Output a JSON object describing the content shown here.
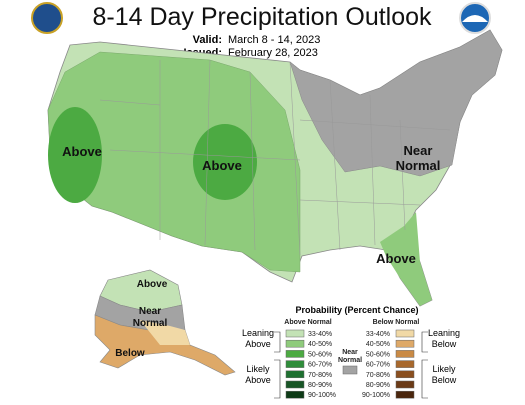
{
  "header": {
    "title": "8-14 Day Precipitation Outlook",
    "valid_label": "Valid:",
    "valid": "March 8 - 14, 2023",
    "issued_label": "Issued:",
    "issued": "February 28, 2023"
  },
  "map_labels": {
    "west_coast": "Above",
    "central": "Above",
    "northeast": [
      "Near",
      "Normal"
    ],
    "southeast": "Above",
    "alaska_north": "Above",
    "alaska_middle": [
      "Near",
      "Normal"
    ],
    "alaska_south": "Below"
  },
  "legend": {
    "title": "Probability (Percent Chance)",
    "above_header": "Above Normal",
    "below_header": "Below Normal",
    "near": [
      "Near",
      "Normal"
    ],
    "above_levels": [
      "33-40%",
      "40-50%",
      "50-60%",
      "60-70%",
      "70-80%",
      "80-90%",
      "90-100%"
    ],
    "below_levels": [
      "33-40%",
      "40-50%",
      "50-60%",
      "60-70%",
      "70-80%",
      "80-90%",
      "90-100%"
    ],
    "leaning_above": [
      "Leaning",
      "Above"
    ],
    "likely_above": [
      "Likely",
      "Above"
    ],
    "leaning_below": [
      "Leaning",
      "Below"
    ],
    "likely_below": [
      "Likely",
      "Below"
    ]
  }
}
